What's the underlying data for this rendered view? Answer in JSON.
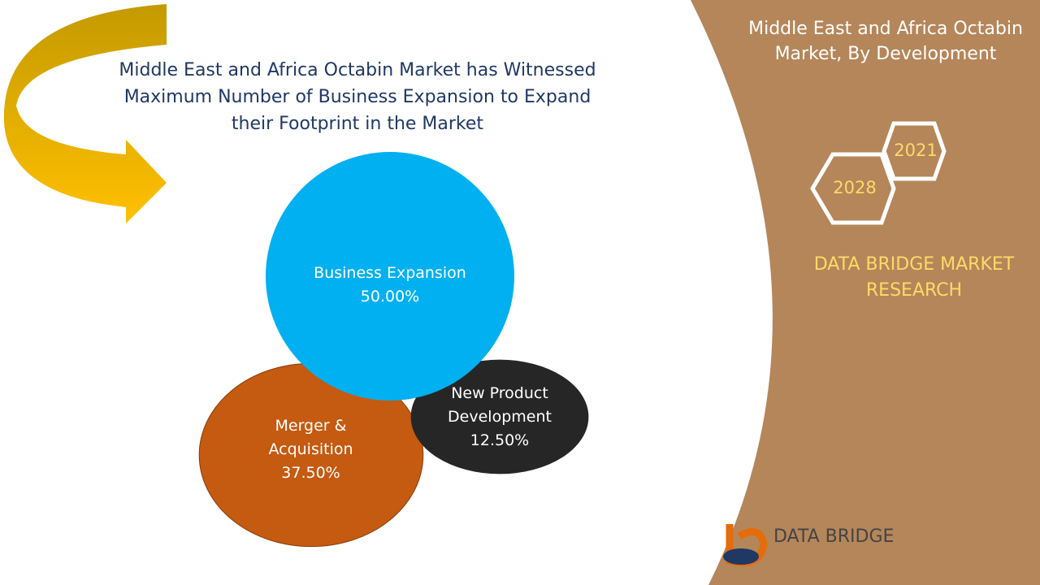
{
  "chart_data": {
    "type": "bubble",
    "title": "Middle East and Africa Octabin Market has Witnessed Maximum Number of Business Expansion to Expand their Footprint in the Market",
    "categories": [
      "Business Expansion",
      "Merger & Acquisition",
      "New Product Development"
    ],
    "values": [
      50,
      37.5,
      12.5
    ],
    "value_labels": [
      "50.00%",
      "37.50%",
      "12.50%"
    ],
    "colors": [
      "#00b0f0",
      "#c55a11",
      "#262626"
    ]
  },
  "side_panel": {
    "title": "Middle East and Africa Octabin Market, By Development",
    "years": [
      "2021",
      "2028"
    ],
    "brand": "DATA BRIDGE MARKET RESEARCH"
  },
  "logo": {
    "text": "DATA BRIDGE"
  }
}
